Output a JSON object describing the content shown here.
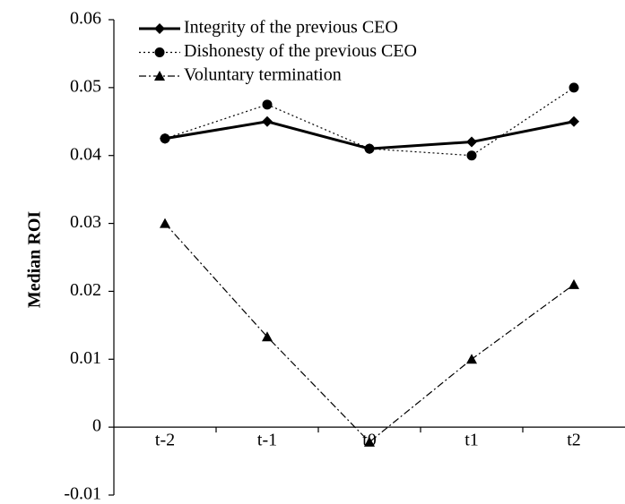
{
  "chart_data": {
    "type": "line",
    "y_label": "Median ROI",
    "categories": [
      "t-2",
      "t-1",
      "t0",
      "t1",
      "t2"
    ],
    "series": [
      {
        "name": "Integrity of the previous CEO",
        "color": "#000000",
        "linestyle": "solid",
        "marker": "diamond",
        "values": [
          0.0425,
          0.045,
          0.041,
          0.042,
          0.045
        ]
      },
      {
        "name": "Dishonesty of the previous CEO",
        "color": "#000000",
        "linestyle": "dotted",
        "marker": "circle",
        "values": [
          0.0425,
          0.0475,
          0.041,
          0.04,
          0.05
        ]
      },
      {
        "name": "Voluntary termination",
        "color": "#000000",
        "linestyle": "dashdot",
        "marker": "triangle",
        "values": [
          0.03,
          0.0133,
          -0.0022,
          0.01,
          0.021
        ]
      }
    ],
    "ylim": [
      -0.01,
      0.06
    ],
    "yticks": [
      -0.01,
      0,
      0.01,
      0.02,
      0.03,
      0.04,
      0.05,
      0.06
    ],
    "grid": false,
    "legend": "upper left"
  }
}
